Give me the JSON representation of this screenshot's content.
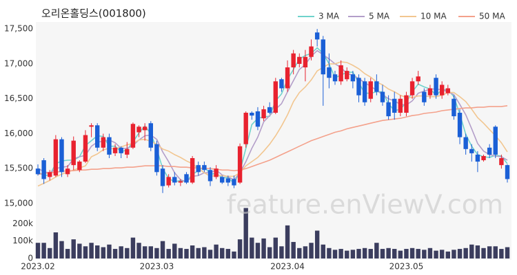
{
  "chart_data": {
    "type": "candlestick",
    "title": "오리온홀딩스(001800)",
    "watermark": "feature.enViewV.com",
    "categories": [
      "2023.02",
      null,
      null,
      null,
      null,
      null,
      null,
      null,
      null,
      null,
      null,
      null,
      null,
      null,
      null,
      null,
      null,
      null,
      null,
      null,
      "2023.03",
      null,
      null,
      null,
      null,
      null,
      null,
      null,
      null,
      null,
      null,
      null,
      null,
      null,
      null,
      null,
      null,
      null,
      null,
      null,
      null,
      null,
      "2023.04",
      null,
      null,
      null,
      null,
      null,
      null,
      null,
      null,
      null,
      null,
      null,
      null,
      null,
      null,
      null,
      null,
      null,
      null,
      null,
      "2023.05",
      null,
      null,
      null,
      null,
      null,
      null,
      null,
      null,
      null,
      null,
      null,
      null,
      null,
      null,
      null,
      null,
      null
    ],
    "open": [
      15500,
      15620,
      15380,
      15400,
      15920,
      15420,
      15550,
      15480,
      15600,
      16100,
      16120,
      15800,
      15950,
      15720,
      15800,
      15700,
      15800,
      16020,
      16050,
      16150,
      15850,
      15500,
      15260,
      15380,
      15300,
      15420,
      15300,
      15550,
      15550,
      15480,
      15380,
      15380,
      15360,
      15350,
      15300,
      15850,
      16300,
      16320,
      16220,
      16380,
      16300,
      16780,
      16650,
      16950,
      17000,
      16950,
      17100,
      17450,
      17350,
      16950,
      16850,
      16750,
      16780,
      16850,
      16800,
      16750,
      16500,
      16750,
      16600,
      16450,
      16500,
      16300,
      16300,
      16550,
      16750,
      16600,
      16550,
      16800,
      16550,
      16580,
      16500,
      16300,
      15950,
      15780,
      15700,
      15620,
      15800,
      16100,
      15550,
      15550
    ],
    "high": [
      15560,
      15650,
      15480,
      15980,
      15950,
      15550,
      15960,
      15620,
      16050,
      16150,
      16150,
      16000,
      16000,
      15850,
      15820,
      15880,
      16160,
      16120,
      16150,
      16180,
      15900,
      15550,
      15420,
      15450,
      15350,
      15450,
      15680,
      15600,
      15600,
      15520,
      15550,
      15400,
      15400,
      15400,
      15860,
      16320,
      16320,
      16380,
      16400,
      16450,
      16800,
      16800,
      17050,
      17200,
      17150,
      17200,
      17350,
      17500,
      17400,
      17150,
      16900,
      17050,
      16950,
      16900,
      16850,
      16800,
      16800,
      16850,
      16700,
      16550,
      16600,
      16550,
      16600,
      16800,
      16900,
      16650,
      16700,
      16850,
      16750,
      16700,
      16550,
      16350,
      16000,
      15850,
      15750,
      15700,
      15850,
      16120,
      15700,
      15560
    ],
    "low": [
      15400,
      15280,
      15330,
      15380,
      15380,
      15380,
      15480,
      15450,
      15580,
      15950,
      15750,
      15750,
      15650,
      15680,
      15650,
      15650,
      15780,
      15950,
      15900,
      15750,
      15400,
      15150,
      15230,
      15260,
      15250,
      15280,
      15280,
      15400,
      15450,
      15250,
      15350,
      15280,
      15250,
      15220,
      15280,
      15800,
      16200,
      16050,
      16180,
      16280,
      16280,
      16600,
      16600,
      16850,
      16950,
      16750,
      17050,
      17250,
      16400,
      16650,
      16700,
      16700,
      16750,
      16650,
      16450,
      16400,
      16450,
      16550,
      16400,
      16200,
      16200,
      16250,
      16250,
      16500,
      16700,
      16400,
      16500,
      16500,
      16500,
      16550,
      16200,
      15850,
      15700,
      15600,
      15450,
      15600,
      15650,
      15650,
      15500,
      15300
    ],
    "close": [
      15420,
      15350,
      15450,
      15920,
      15450,
      15500,
      15900,
      15600,
      15980,
      16120,
      15800,
      15950,
      15700,
      15800,
      15720,
      15780,
      16140,
      16100,
      16100,
      15800,
      15450,
      15250,
      15380,
      15300,
      15320,
      15300,
      15650,
      15450,
      15480,
      15320,
      15500,
      15300,
      15300,
      15260,
      15820,
      16300,
      16260,
      16100,
      16350,
      16300,
      16750,
      16650,
      16950,
      17150,
      17100,
      17100,
      17250,
      17350,
      16850,
      16800,
      16750,
      16980,
      16900,
      16750,
      16550,
      16450,
      16750,
      16600,
      16450,
      16250,
      16300,
      16500,
      16550,
      16750,
      16820,
      16450,
      16650,
      16550,
      16700,
      16650,
      16250,
      15950,
      15780,
      15720,
      15600,
      15680,
      15700,
      15700,
      15650,
      15350
    ],
    "volume": [
      90000,
      90000,
      60000,
      150000,
      100000,
      55000,
      110000,
      85000,
      70000,
      90000,
      75000,
      65000,
      80000,
      55000,
      70000,
      60000,
      120000,
      90000,
      70000,
      70000,
      60000,
      100000,
      55000,
      85000,
      60000,
      55000,
      75000,
      60000,
      65000,
      50000,
      80000,
      60000,
      55000,
      40000,
      110000,
      290000,
      120000,
      90000,
      115000,
      65000,
      120000,
      70000,
      190000,
      95000,
      60000,
      70000,
      90000,
      160000,
      80000,
      60000,
      50000,
      55000,
      45000,
      50000,
      55000,
      60000,
      55000,
      90000,
      55000,
      60000,
      55000,
      45000,
      55000,
      60000,
      55000,
      50000,
      60000,
      45000,
      50000,
      40000,
      50000,
      55000,
      60000,
      80000,
      75000,
      60000,
      70000,
      70000,
      55000,
      65000
    ],
    "up_color": "#e8222f",
    "down_color": "#1a5fd6",
    "volume_color": "#3b3d5e",
    "ma": [
      {
        "name": "3 MA",
        "color": "#6fd3cc",
        "values": [
          15450,
          15400,
          15410,
          15570,
          15610,
          15620,
          15620,
          15670,
          15830,
          15900,
          15970,
          15960,
          15820,
          15820,
          15740,
          15770,
          15880,
          16010,
          16110,
          16000,
          15780,
          15500,
          15360,
          15310,
          15330,
          15310,
          15420,
          15470,
          15530,
          15420,
          15430,
          15370,
          15370,
          15290,
          15460,
          15790,
          16130,
          16220,
          16240,
          16250,
          16470,
          16570,
          16780,
          16920,
          17070,
          17120,
          17150,
          17230,
          17150,
          17000,
          16800,
          16840,
          16880,
          16880,
          16730,
          16580,
          16580,
          16600,
          16600,
          16430,
          16330,
          16350,
          16450,
          16600,
          16710,
          16670,
          16640,
          16550,
          16630,
          16630,
          16530,
          16280,
          15990,
          15820,
          15700,
          15670,
          15660,
          15690,
          15680,
          15570
        ]
      },
      {
        "name": "5 MA",
        "color": "#b39ec9",
        "values": [
          15500,
          15460,
          15430,
          15500,
          15520,
          15530,
          15640,
          15670,
          15690,
          15820,
          15880,
          15890,
          15910,
          15870,
          15790,
          15790,
          15830,
          15910,
          15970,
          15980,
          15920,
          15740,
          15600,
          15440,
          15340,
          15310,
          15390,
          15400,
          15440,
          15440,
          15480,
          15410,
          15380,
          15340,
          15440,
          15600,
          15790,
          15950,
          16170,
          16260,
          16350,
          16430,
          16600,
          16760,
          16920,
          16990,
          17110,
          17190,
          17130,
          17070,
          17000,
          16950,
          16860,
          16840,
          16790,
          16730,
          16680,
          16620,
          16560,
          16500,
          16470,
          16420,
          16410,
          16470,
          16580,
          16610,
          16640,
          16640,
          16630,
          16600,
          16560,
          16420,
          16270,
          16070,
          15860,
          15750,
          15700,
          15680,
          15670,
          15620
        ]
      },
      {
        "name": "10 MA",
        "color": "#f2c690",
        "values": [
          15250,
          15290,
          15330,
          15380,
          15420,
          15450,
          15480,
          15510,
          15540,
          15670,
          15710,
          15770,
          15790,
          15780,
          15810,
          15840,
          15860,
          15910,
          15920,
          15890,
          15850,
          15780,
          15750,
          15700,
          15660,
          15610,
          15570,
          15500,
          15440,
          15390,
          15400,
          15400,
          15390,
          15390,
          15440,
          15540,
          15600,
          15660,
          15750,
          15850,
          15970,
          16110,
          16270,
          16460,
          16590,
          16670,
          16770,
          16900,
          16950,
          17000,
          17000,
          17030,
          17020,
          16980,
          16930,
          16860,
          16810,
          16740,
          16700,
          16640,
          16600,
          16550,
          16520,
          16520,
          16540,
          16540,
          16530,
          16530,
          16550,
          16590,
          16590,
          16530,
          16460,
          16350,
          16230,
          16150,
          16060,
          15970,
          15870,
          15740
        ]
      },
      {
        "name": "50 MA",
        "color": "#f4a18b",
        "values": [
          15420,
          15430,
          15440,
          15450,
          15460,
          15470,
          15470,
          15480,
          15480,
          15490,
          15490,
          15500,
          15500,
          15510,
          15510,
          15520,
          15520,
          15530,
          15540,
          15540,
          15540,
          15540,
          15530,
          15530,
          15520,
          15520,
          15510,
          15510,
          15500,
          15500,
          15490,
          15480,
          15480,
          15470,
          15480,
          15500,
          15530,
          15560,
          15590,
          15620,
          15660,
          15700,
          15740,
          15780,
          15820,
          15860,
          15900,
          15930,
          15960,
          15990,
          16020,
          16040,
          16070,
          16090,
          16110,
          16130,
          16150,
          16170,
          16190,
          16200,
          16210,
          16220,
          16240,
          16260,
          16270,
          16290,
          16300,
          16310,
          16330,
          16340,
          16350,
          16360,
          16370,
          16370,
          16380,
          16380,
          16390,
          16390,
          16390,
          16400
        ]
      }
    ],
    "ylim": [
      15000,
      17600
    ],
    "yticks": [
      {
        "value": 15000,
        "label": "15,000"
      },
      {
        "value": 15500,
        "label": "15,500"
      },
      {
        "value": 16000,
        "label": "16,000"
      },
      {
        "value": 16500,
        "label": "16,500"
      },
      {
        "value": 17000,
        "label": "17,000"
      },
      {
        "value": 17500,
        "label": "17,500"
      }
    ],
    "volume_ylim": [
      0,
      300000
    ],
    "volume_yticks": [
      0,
      {
        "value": 100000,
        "label": "100k"
      },
      {
        "value": 200000,
        "label": "200k"
      }
    ],
    "grid": false
  }
}
